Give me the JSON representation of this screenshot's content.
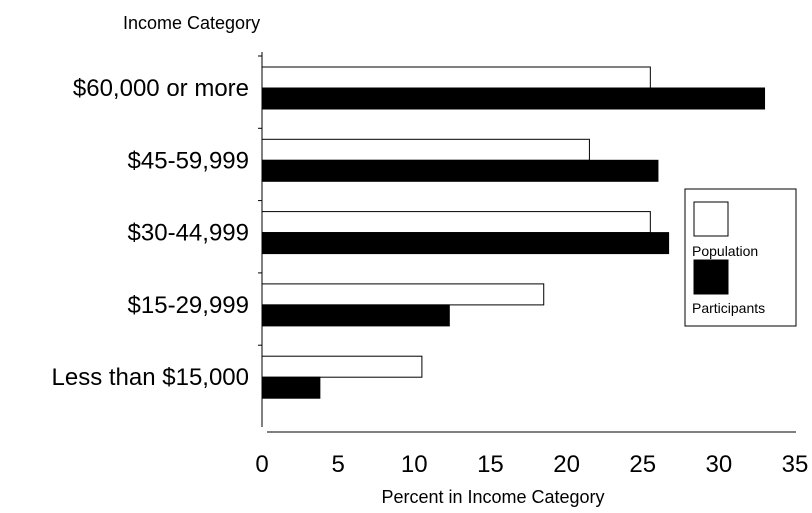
{
  "chart_data": {
    "type": "bar",
    "orientation": "horizontal",
    "title": "",
    "ylabel": "Income Category",
    "xlabel": "Percent in Income Category",
    "categories": [
      "$60,000 or more",
      "$45-59,999",
      "$30-44,999",
      "$15-29,999",
      "Less than $15,000"
    ],
    "series": [
      {
        "name": "Population",
        "color": "#ffffff",
        "values": [
          25.5,
          21.5,
          25.5,
          18.5,
          10.5
        ]
      },
      {
        "name": "Participants",
        "color": "#000000",
        "values": [
          33.0,
          26.0,
          26.7,
          12.3,
          3.8
        ]
      }
    ],
    "xlim": [
      0,
      35
    ],
    "xticks": [
      "0",
      "5",
      "10",
      "15",
      "20",
      "25",
      "30",
      "35"
    ],
    "grid": false,
    "legend_position": "right"
  }
}
